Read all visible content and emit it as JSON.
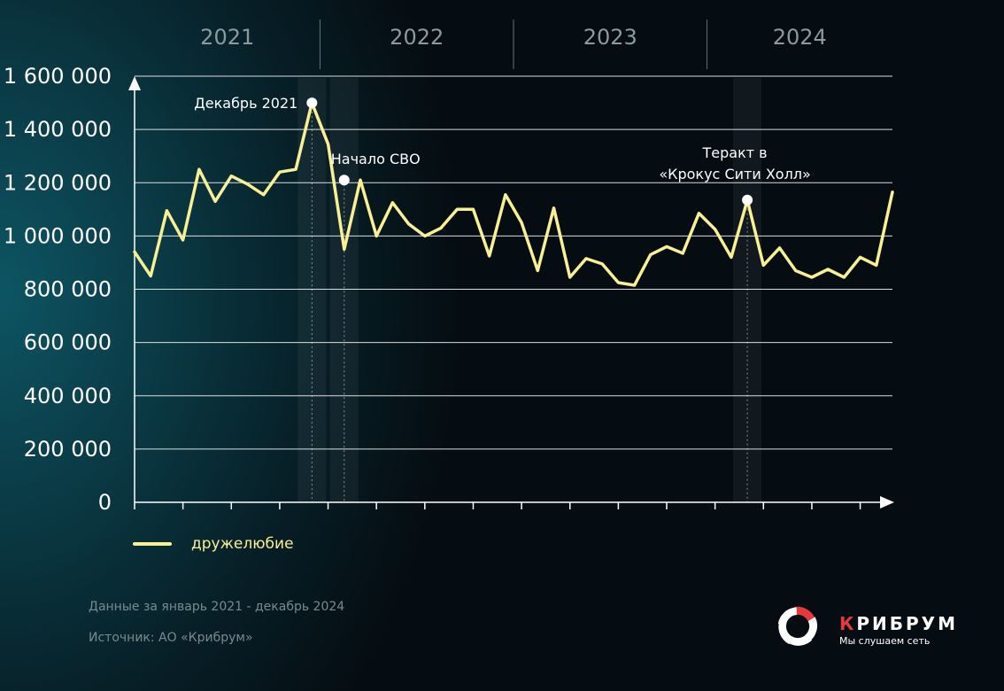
{
  "chart_data": {
    "type": "line",
    "title": "",
    "xlabel": "",
    "ylabel": "",
    "ylim": [
      0,
      1600000
    ],
    "yticks": [
      0,
      200000,
      400000,
      600000,
      800000,
      1000000,
      1200000,
      1400000,
      1600000
    ],
    "ytick_labels": [
      "0",
      "200 000",
      "400 000",
      "600 000",
      "800 000",
      "1 000 000",
      "1 200 000",
      "1 400 000",
      "1 600 000"
    ],
    "years": [
      "2021",
      "2022",
      "2023",
      "2024"
    ],
    "x": [
      "2021-01",
      "2021-02",
      "2021-03",
      "2021-04",
      "2021-05",
      "2021-06",
      "2021-07",
      "2021-08",
      "2021-09",
      "2021-10",
      "2021-11",
      "2021-12",
      "2022-01",
      "2022-02",
      "2022-03",
      "2022-04",
      "2022-05",
      "2022-06",
      "2022-07",
      "2022-08",
      "2022-09",
      "2022-10",
      "2022-11",
      "2022-12",
      "2023-01",
      "2023-02",
      "2023-03",
      "2023-04",
      "2023-05",
      "2023-06",
      "2023-07",
      "2023-08",
      "2023-09",
      "2023-10",
      "2023-11",
      "2023-12",
      "2024-01",
      "2024-02",
      "2024-03",
      "2024-04",
      "2024-05",
      "2024-06",
      "2024-07",
      "2024-08",
      "2024-09",
      "2024-10",
      "2024-11",
      "2024-12"
    ],
    "series": [
      {
        "name": "дружелюбие",
        "color": "#f9ef95",
        "values": [
          940000,
          850000,
          1095000,
          985000,
          1250000,
          1130000,
          1225000,
          1195000,
          1155000,
          1240000,
          1250000,
          1500000,
          1345000,
          950000,
          1210000,
          1000000,
          1125000,
          1045000,
          1000000,
          1030000,
          1100000,
          1100000,
          925000,
          1155000,
          1050000,
          870000,
          1105000,
          845000,
          915000,
          895000,
          825000,
          815000,
          930000,
          960000,
          935000,
          1085000,
          1025000,
          920000,
          1135000,
          890000,
          955000,
          870000,
          845000,
          875000,
          845000,
          920000,
          890000,
          1165000
        ]
      }
    ],
    "annotations": [
      {
        "label": "Декабрь 2021",
        "x": "2021-12",
        "y": 1500000
      },
      {
        "label": "Начало СВО",
        "x": "2022-02",
        "y": 1210000
      },
      {
        "label_line1": "Теракт в",
        "label_line2": "«Крокус Сити Холл»",
        "x": "2024-03",
        "y": 1135000
      }
    ],
    "grid": true,
    "legend": "bottom-left"
  },
  "footer": {
    "period": "Данные за январь 2021 - декабрь 2024",
    "source": "Источник: АО «Крибрум»"
  },
  "logo": {
    "name_first": "К",
    "name_rest": "РИБРУМ",
    "tagline": "Мы слушаем сеть",
    "accent": "#e33b3b"
  }
}
